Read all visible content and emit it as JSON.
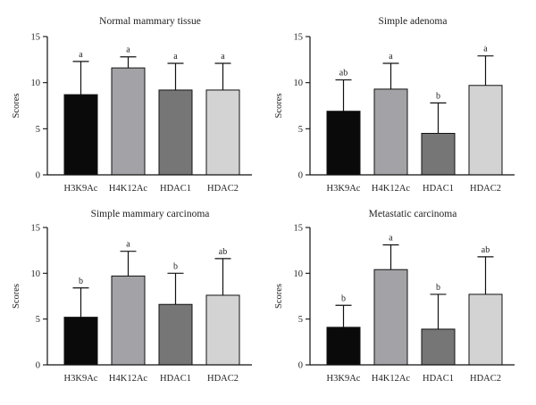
{
  "chart_data": [
    {
      "type": "bar",
      "title": "Normal mammary tissue",
      "ylabel": "Scores",
      "xlabel": "",
      "categories": [
        "H3K9Ac",
        "H4K12Ac",
        "HDAC1",
        "HDAC2"
      ],
      "values": [
        8.7,
        11.6,
        9.2,
        9.2
      ],
      "error_upper": [
        12.3,
        12.8,
        12.1,
        12.1
      ],
      "significance": [
        "a",
        "a",
        "a",
        "a"
      ],
      "ylim": [
        0,
        15
      ],
      "yticks": [
        "0",
        "5",
        "10",
        "15"
      ]
    },
    {
      "type": "bar",
      "title": "Simple adenoma",
      "ylabel": "Scores",
      "xlabel": "",
      "categories": [
        "H3K9Ac",
        "H4K12Ac",
        "HDAC1",
        "HDAC2"
      ],
      "values": [
        6.9,
        9.3,
        4.5,
        9.7
      ],
      "error_upper": [
        10.3,
        12.1,
        7.8,
        12.9
      ],
      "significance": [
        "ab",
        "a",
        "b",
        "a"
      ],
      "ylim": [
        0,
        15
      ],
      "yticks": [
        "0",
        "5",
        "10",
        "15"
      ]
    },
    {
      "type": "bar",
      "title": "Simple mammary carcinoma",
      "ylabel": "Scores",
      "xlabel": "",
      "categories": [
        "H3K9Ac",
        "H4K12Ac",
        "HDAC1",
        "HDAC2"
      ],
      "values": [
        5.2,
        9.7,
        6.6,
        7.6
      ],
      "error_upper": [
        8.4,
        12.4,
        10.0,
        11.6
      ],
      "significance": [
        "b",
        "a",
        "b",
        "ab"
      ],
      "ylim": [
        0,
        15
      ],
      "yticks": [
        "0",
        "5",
        "10",
        "15"
      ]
    },
    {
      "type": "bar",
      "title": "Metastatic carcinoma",
      "ylabel": "Scores",
      "xlabel": "",
      "categories": [
        "H3K9Ac",
        "H4K12Ac",
        "HDAC1",
        "HDAC2"
      ],
      "values": [
        4.1,
        10.4,
        3.9,
        7.7
      ],
      "error_upper": [
        6.5,
        13.1,
        7.7,
        11.8
      ],
      "significance": [
        "b",
        "a",
        "b",
        "ab"
      ],
      "ylim": [
        0,
        15
      ],
      "yticks": [
        "0",
        "5",
        "10",
        "15"
      ]
    }
  ],
  "bar_colors": [
    "#0a0a0a",
    "#a3a3a7",
    "#767677",
    "#d3d3d3"
  ]
}
